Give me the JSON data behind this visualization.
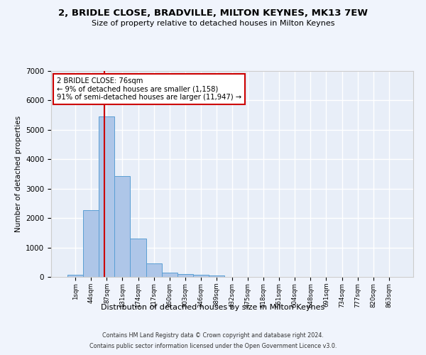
{
  "title": "2, BRIDLE CLOSE, BRADVILLE, MILTON KEYNES, MK13 7EW",
  "subtitle": "Size of property relative to detached houses in Milton Keynes",
  "xlabel": "Distribution of detached houses by size in Milton Keynes",
  "ylabel": "Number of detached properties",
  "bar_color": "#aec6e8",
  "bar_edge_color": "#5a9fd4",
  "background_color": "#e8eef8",
  "grid_color": "#ffffff",
  "annotation_line1": "2 BRIDLE CLOSE: 76sqm",
  "annotation_line2": "← 9% of detached houses are smaller (1,158)",
  "annotation_line3": "91% of semi-detached houses are larger (11,947) →",
  "annotation_box_color": "#ffffff",
  "annotation_box_edge_color": "#cc0000",
  "vline_color": "#cc0000",
  "vline_x": 1.85,
  "categories": [
    "1sqm",
    "44sqm",
    "87sqm",
    "131sqm",
    "174sqm",
    "217sqm",
    "260sqm",
    "303sqm",
    "346sqm",
    "389sqm",
    "432sqm",
    "475sqm",
    "518sqm",
    "561sqm",
    "604sqm",
    "648sqm",
    "691sqm",
    "734sqm",
    "777sqm",
    "820sqm",
    "863sqm"
  ],
  "values": [
    75,
    2270,
    5460,
    3420,
    1310,
    460,
    155,
    100,
    65,
    40,
    0,
    0,
    0,
    0,
    0,
    0,
    0,
    0,
    0,
    0,
    0
  ],
  "ylim": [
    0,
    7000
  ],
  "yticks": [
    0,
    1000,
    2000,
    3000,
    4000,
    5000,
    6000,
    7000
  ],
  "fig_bg": "#f0f4fc",
  "footer1": "Contains HM Land Registry data © Crown copyright and database right 2024.",
  "footer2": "Contains public sector information licensed under the Open Government Licence v3.0."
}
